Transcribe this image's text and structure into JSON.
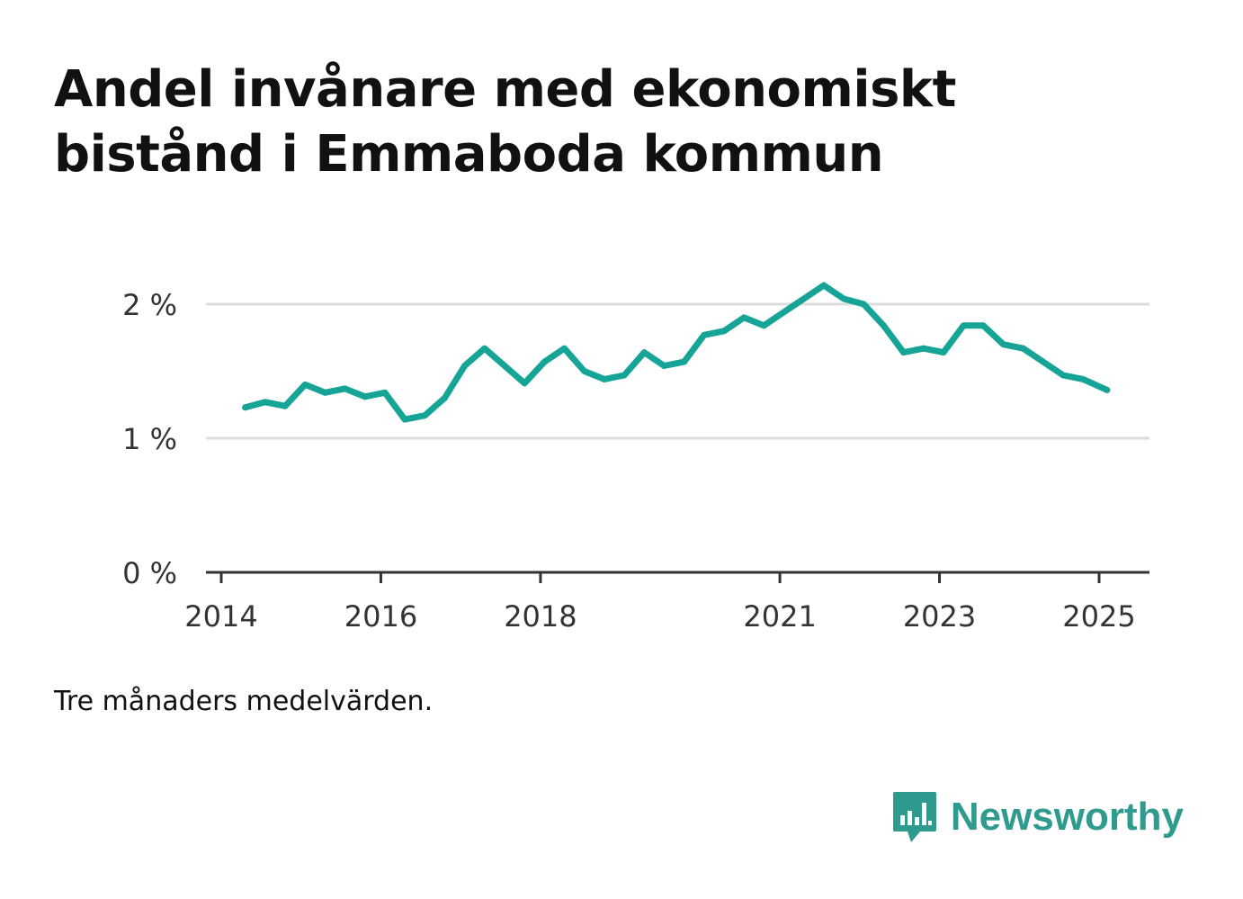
{
  "title": {
    "line1": "Andel invånare med ekonomiskt",
    "line2": "bistånd i Emmaboda kommun"
  },
  "note": "Tre månaders medelvärden.",
  "brand": {
    "name": "Newsworthy",
    "icon": "newsworthy-logo-icon",
    "color": "#2f9a8e"
  },
  "chart_data": {
    "type": "line",
    "title": "Andel invånare med ekonomiskt bistånd i Emmaboda kommun",
    "xlabel": "",
    "ylabel": "",
    "ylim": [
      0,
      2
    ],
    "yticks": [
      {
        "value": 0,
        "label": "0 %"
      },
      {
        "value": 1,
        "label": "1 %"
      },
      {
        "value": 2,
        "label": "2 %"
      }
    ],
    "xlim": [
      2014.0,
      2025.5
    ],
    "xticks": [
      {
        "value": 2014,
        "label": "2014"
      },
      {
        "value": 2016,
        "label": "2016"
      },
      {
        "value": 2018,
        "label": "2018"
      },
      {
        "value": 2021,
        "label": "2021"
      },
      {
        "value": 2023,
        "label": "2023"
      },
      {
        "value": 2025,
        "label": "2025"
      }
    ],
    "grid": true,
    "line_color": "#16a497",
    "series": [
      {
        "name": "",
        "x": [
          2014.3,
          2014.55,
          2014.8,
          2015.05,
          2015.3,
          2015.55,
          2015.8,
          2016.05,
          2016.3,
          2016.55,
          2016.8,
          2017.05,
          2017.3,
          2017.55,
          2017.8,
          2018.05,
          2018.3,
          2018.55,
          2018.8,
          2019.05,
          2019.3,
          2019.55,
          2019.8,
          2020.05,
          2020.3,
          2020.55,
          2020.8,
          2021.05,
          2021.3,
          2021.55,
          2021.8,
          2022.05,
          2022.3,
          2022.55,
          2022.8,
          2023.05,
          2023.3,
          2023.55,
          2023.8,
          2024.05,
          2024.3,
          2024.55,
          2024.8,
          2025.1
        ],
        "values": [
          1.23,
          1.27,
          1.24,
          1.4,
          1.34,
          1.37,
          1.31,
          1.34,
          1.14,
          1.17,
          1.3,
          1.54,
          1.67,
          1.54,
          1.41,
          1.57,
          1.67,
          1.5,
          1.44,
          1.47,
          1.64,
          1.54,
          1.57,
          1.77,
          1.8,
          1.9,
          1.84,
          1.94,
          2.04,
          2.14,
          2.04,
          2.0,
          1.84,
          1.64,
          1.67,
          1.64,
          1.84,
          1.84,
          1.7,
          1.67,
          1.57,
          1.47,
          1.44,
          1.36
        ]
      }
    ]
  }
}
